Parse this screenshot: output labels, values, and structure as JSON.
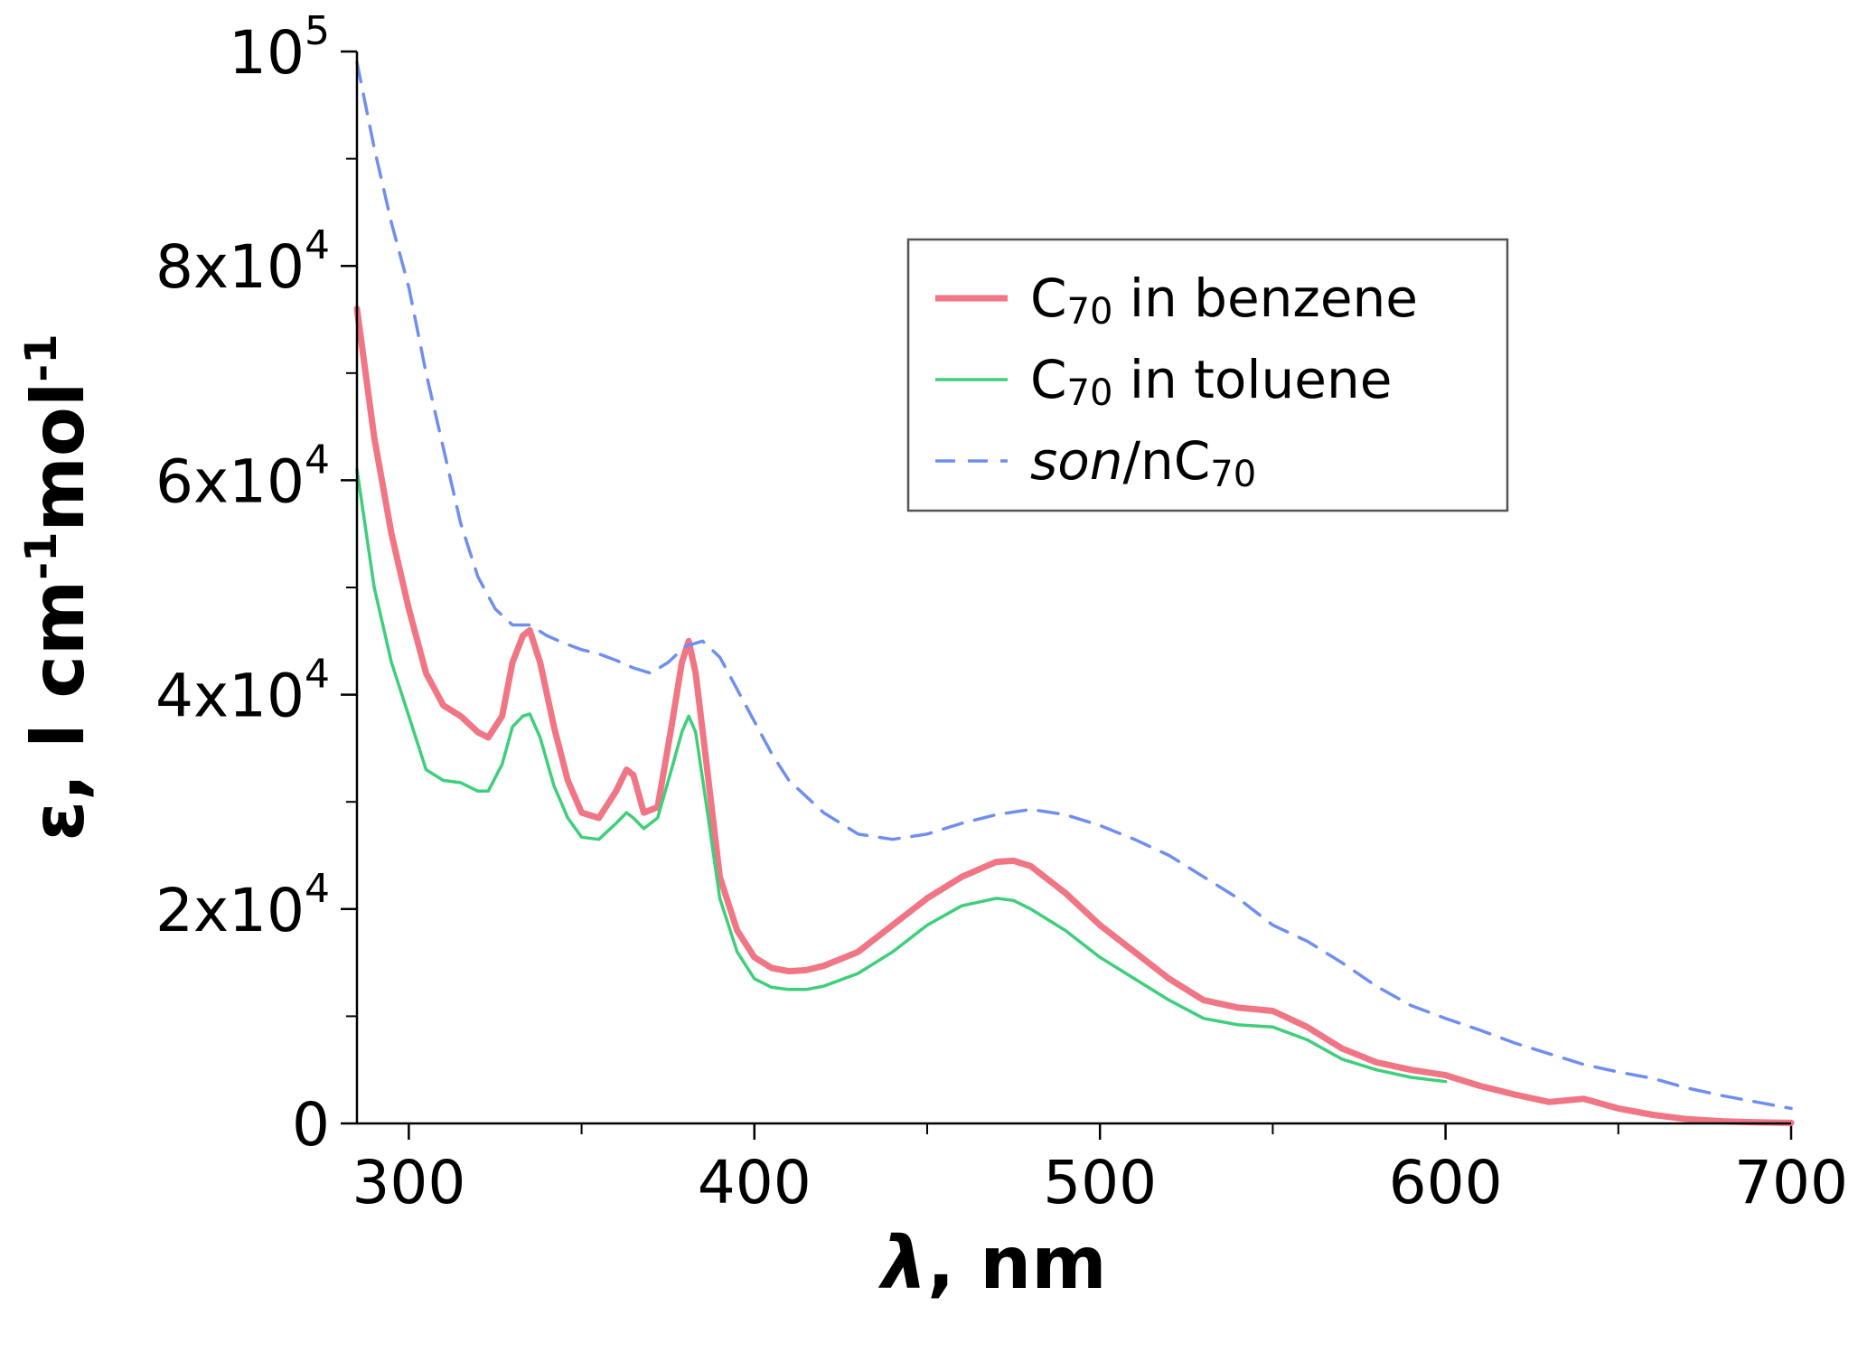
{
  "chart_data": {
    "type": "line",
    "title": "",
    "xlabel": {
      "symbol": "λ",
      "rest": ", nm"
    },
    "ylabel": {
      "symbol": "ε",
      "rest": ", l cm",
      "exp1": "-1",
      "mid": "mol",
      "exp2": "-1"
    },
    "xlim": [
      285,
      700
    ],
    "ylim": [
      0,
      100000
    ],
    "x_ticks": [
      {
        "value": 300,
        "label": "300"
      },
      {
        "value": 400,
        "label": "400"
      },
      {
        "value": 500,
        "label": "500"
      },
      {
        "value": 600,
        "label": "600"
      },
      {
        "value": 700,
        "label": "700"
      }
    ],
    "y_ticks": [
      {
        "value": 0,
        "mantissa": "0",
        "base": "",
        "exp": ""
      },
      {
        "value": 20000,
        "mantissa": "2x10",
        "base": "",
        "exp": "4"
      },
      {
        "value": 40000,
        "mantissa": "4x10",
        "base": "",
        "exp": "4"
      },
      {
        "value": 60000,
        "mantissa": "6x10",
        "base": "",
        "exp": "4"
      },
      {
        "value": 80000,
        "mantissa": "8x10",
        "base": "",
        "exp": "4"
      },
      {
        "value": 100000,
        "mantissa": "10",
        "base": "",
        "exp": "5"
      }
    ],
    "legend_position": "top-right",
    "series": [
      {
        "name": "C70 in benzene",
        "legend_parts": [
          {
            "t": "C",
            "s": ""
          },
          {
            "t": "70",
            "s": "sub"
          },
          {
            "t": " in benzene",
            "s": ""
          }
        ],
        "color": "#f07585",
        "style": "solid-thick",
        "x": [
          285,
          290,
          295,
          300,
          305,
          310,
          315,
          320,
          323,
          327,
          330,
          333,
          335,
          338,
          342,
          346,
          350,
          355,
          360,
          363,
          365,
          368,
          372,
          376,
          379,
          381,
          383,
          386,
          390,
          395,
          400,
          405,
          410,
          415,
          420,
          430,
          440,
          450,
          460,
          470,
          475,
          480,
          490,
          500,
          510,
          520,
          530,
          540,
          550,
          560,
          570,
          580,
          590,
          600,
          610,
          620,
          630,
          640,
          650,
          660,
          670,
          680,
          690,
          700
        ],
        "y": [
          76000,
          64000,
          55000,
          48000,
          42000,
          39000,
          38000,
          36500,
          36000,
          38000,
          43000,
          45500,
          46000,
          43000,
          37000,
          32000,
          29000,
          28500,
          31000,
          33000,
          32500,
          29000,
          29500,
          37000,
          43000,
          45000,
          42000,
          34000,
          23000,
          18000,
          15500,
          14500,
          14200,
          14300,
          14700,
          16000,
          18500,
          21000,
          23000,
          24400,
          24500,
          24000,
          21500,
          18500,
          16000,
          13500,
          11500,
          10800,
          10500,
          9000,
          7000,
          5700,
          5000,
          4500,
          3500,
          2700,
          2000,
          2300,
          1400,
          800,
          400,
          200,
          100,
          50
        ]
      },
      {
        "name": "C70 in toluene",
        "legend_parts": [
          {
            "t": "C",
            "s": ""
          },
          {
            "t": "70",
            "s": "sub"
          },
          {
            "t": " in toluene",
            "s": ""
          }
        ],
        "color": "#3ecf7a",
        "style": "solid-thin",
        "x": [
          285,
          290,
          295,
          300,
          305,
          310,
          315,
          320,
          323,
          327,
          330,
          333,
          335,
          338,
          342,
          346,
          350,
          355,
          360,
          363,
          365,
          368,
          372,
          376,
          379,
          381,
          383,
          386,
          390,
          395,
          400,
          405,
          410,
          415,
          420,
          430,
          440,
          450,
          460,
          470,
          475,
          480,
          490,
          500,
          510,
          520,
          530,
          540,
          550,
          560,
          570,
          580,
          590,
          600
        ],
        "y": [
          61000,
          50000,
          43000,
          38000,
          33000,
          32000,
          31800,
          31000,
          31000,
          33500,
          37000,
          38000,
          38200,
          36000,
          31500,
          28500,
          26700,
          26500,
          28000,
          29000,
          28500,
          27500,
          28500,
          33000,
          36500,
          38000,
          36500,
          30000,
          21000,
          16000,
          13500,
          12700,
          12500,
          12500,
          12800,
          14000,
          16000,
          18500,
          20300,
          21000,
          20800,
          20000,
          18000,
          15500,
          13500,
          11500,
          9800,
          9200,
          9000,
          7800,
          6000,
          5000,
          4300,
          3900
        ]
      },
      {
        "name": "son/nC70",
        "legend_parts": [
          {
            "t": "son",
            "s": "ital"
          },
          {
            "t": "/nC",
            "s": ""
          },
          {
            "t": "70",
            "s": "sub"
          }
        ],
        "color": "#6f8ff0",
        "style": "dashed",
        "x": [
          285,
          290,
          295,
          300,
          305,
          310,
          315,
          320,
          325,
          330,
          335,
          340,
          345,
          350,
          355,
          360,
          365,
          370,
          375,
          380,
          385,
          390,
          395,
          400,
          405,
          410,
          420,
          430,
          440,
          450,
          460,
          470,
          480,
          490,
          500,
          510,
          520,
          530,
          540,
          550,
          560,
          570,
          580,
          590,
          600,
          610,
          620,
          630,
          640,
          650,
          660,
          670,
          680,
          690,
          700
        ],
        "y": [
          99000,
          91000,
          84000,
          78000,
          70000,
          63000,
          56000,
          51000,
          48000,
          46500,
          46500,
          45500,
          44800,
          44200,
          43800,
          43200,
          42500,
          42000,
          43000,
          44500,
          45000,
          43500,
          40500,
          37500,
          34500,
          32000,
          29000,
          27000,
          26500,
          27000,
          28000,
          28800,
          29300,
          28800,
          27800,
          26500,
          25000,
          23000,
          21000,
          18500,
          17000,
          15000,
          12800,
          11000,
          9800,
          8700,
          7500,
          6500,
          5500,
          4800,
          4200,
          3300,
          2600,
          2000,
          1400
        ]
      }
    ]
  }
}
